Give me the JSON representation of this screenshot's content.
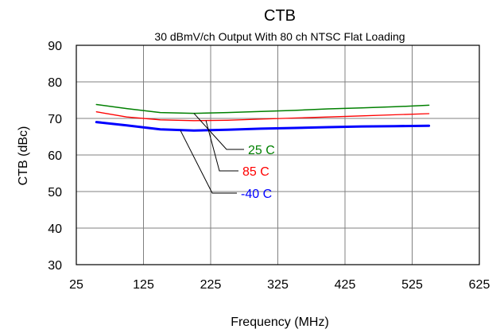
{
  "chart_data": {
    "type": "line",
    "title": "CTB",
    "subtitle": "30 dBmV/ch Output With 80 ch NTSC Flat Loading",
    "xlabel": "Frequency (MHz)",
    "ylabel": "CTB (dBc)",
    "xlim": [
      25,
      625
    ],
    "ylim": [
      30,
      90
    ],
    "xticks": [
      25,
      125,
      225,
      325,
      425,
      525,
      625
    ],
    "yticks": [
      30,
      40,
      50,
      60,
      70,
      80,
      90
    ],
    "grid": true,
    "legend": "annotations",
    "series": [
      {
        "name": "25 C",
        "color": "#008000",
        "x": [
          55,
          100,
          150,
          200,
          250,
          300,
          350,
          400,
          450,
          500,
          550
        ],
        "y": [
          73.8,
          72.7,
          71.6,
          71.4,
          71.6,
          71.9,
          72.2,
          72.6,
          72.9,
          73.2,
          73.6
        ],
        "annotation_at": [
          200,
          71.4
        ]
      },
      {
        "name": "85 C",
        "color": "#ff0000",
        "x": [
          55,
          100,
          150,
          200,
          250,
          300,
          350,
          400,
          450,
          500,
          550
        ],
        "y": [
          71.8,
          70.4,
          69.6,
          69.4,
          69.5,
          69.8,
          70.1,
          70.4,
          70.7,
          71.0,
          71.3
        ],
        "annotation_at": [
          218,
          69.4
        ]
      },
      {
        "name": "-40 C",
        "color": "#0000ff",
        "x": [
          55,
          100,
          150,
          200,
          250,
          300,
          350,
          400,
          450,
          500,
          550
        ],
        "y": [
          69.0,
          68.1,
          67.0,
          66.7,
          66.9,
          67.2,
          67.4,
          67.6,
          67.8,
          67.9,
          68.0
        ],
        "annotation_at": [
          180,
          66.7
        ]
      }
    ]
  }
}
